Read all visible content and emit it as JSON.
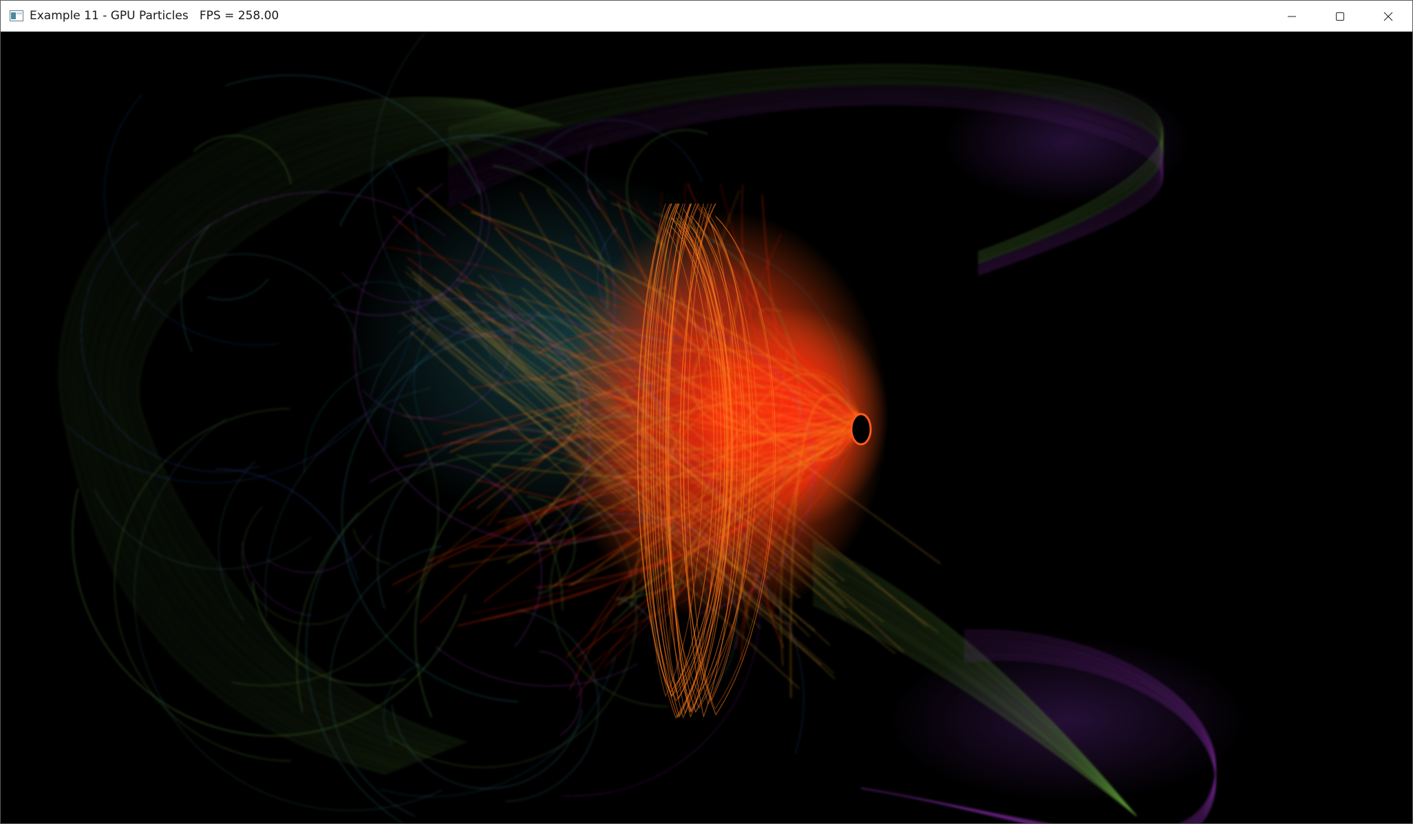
{
  "window": {
    "title": "Example 11 - GPU Particles   FPS = 258.00"
  },
  "controls": {
    "minimize": "minimize-icon",
    "maximize": "maximize-icon",
    "close": "close-icon"
  },
  "palette": {
    "red": "#ff2a10",
    "orange": "#ff7a1a",
    "green": "#5f9a3a",
    "teal": "#2a7f8a",
    "purple": "#7a2a9a",
    "background": "#000000"
  }
}
